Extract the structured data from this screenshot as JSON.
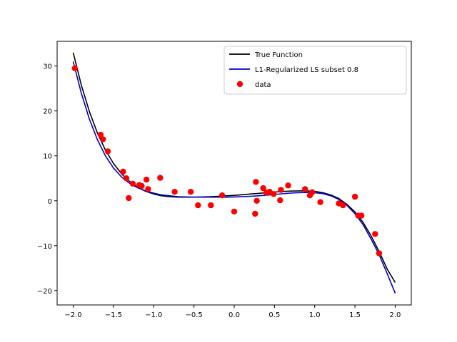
{
  "chart_data": {
    "type": "line",
    "title": "",
    "xlabel": "",
    "ylabel": "",
    "xlim": [
      -2.2,
      2.2
    ],
    "ylim": [
      -23.2,
      35.5
    ],
    "grid": false,
    "legend_position": "top-right",
    "x_ticks": [
      "−2.0",
      "−1.5",
      "−1.0",
      "−0.5",
      "0.0",
      "0.5",
      "1.0",
      "1.5",
      "2.0"
    ],
    "y_ticks": [
      "−20",
      "−10",
      "0",
      "10",
      "20",
      "30"
    ],
    "series": [
      {
        "name": "True Function",
        "kind": "line",
        "color": "#000000",
        "x": [
          -2.0,
          -1.9,
          -1.8,
          -1.7,
          -1.6,
          -1.5,
          -1.4,
          -1.3,
          -1.2,
          -1.1,
          -1.0,
          -0.9,
          -0.8,
          -0.7,
          -0.6,
          -0.5,
          -0.4,
          -0.3,
          -0.2,
          -0.1,
          0.0,
          0.1,
          0.2,
          0.3,
          0.4,
          0.5,
          0.6,
          0.7,
          0.8,
          0.9,
          1.0,
          1.1,
          1.2,
          1.3,
          1.4,
          1.5,
          1.6,
          1.7,
          1.8,
          1.9,
          2.0
        ],
        "y": [
          33.0,
          25.8,
          19.9,
          15.1,
          11.3,
          8.3,
          6.0,
          4.3,
          3.0,
          2.1,
          1.5,
          1.1,
          0.9,
          0.8,
          0.8,
          0.8,
          0.85,
          0.9,
          1.0,
          1.1,
          1.2,
          1.35,
          1.5,
          1.65,
          1.8,
          1.95,
          2.05,
          2.15,
          2.2,
          2.2,
          2.1,
          1.8,
          1.3,
          0.5,
          -0.8,
          -2.5,
          -4.8,
          -7.8,
          -11.3,
          -15.2,
          -18.2
        ]
      },
      {
        "name": "L1-Regularized LS subset 0.8",
        "kind": "line",
        "color": "#0000cc",
        "x": [
          -2.0,
          -1.9,
          -1.8,
          -1.7,
          -1.6,
          -1.5,
          -1.4,
          -1.3,
          -1.2,
          -1.1,
          -1.0,
          -0.9,
          -0.8,
          -0.7,
          -0.6,
          -0.5,
          -0.4,
          -0.3,
          -0.2,
          -0.1,
          0.0,
          0.1,
          0.2,
          0.3,
          0.4,
          0.5,
          0.6,
          0.7,
          0.8,
          0.9,
          1.0,
          1.1,
          1.2,
          1.3,
          1.4,
          1.5,
          1.6,
          1.7,
          1.8,
          1.9,
          2.0
        ],
        "y": [
          31.0,
          24.0,
          18.2,
          13.6,
          10.0,
          7.3,
          5.3,
          3.9,
          2.9,
          2.2,
          1.7,
          1.3,
          1.1,
          0.9,
          0.85,
          0.8,
          0.8,
          0.8,
          0.8,
          0.8,
          0.85,
          0.9,
          1.0,
          1.1,
          1.25,
          1.4,
          1.55,
          1.7,
          1.8,
          1.85,
          1.8,
          1.6,
          1.1,
          0.3,
          -1.0,
          -2.9,
          -5.3,
          -8.5,
          -12.0,
          -16.2,
          -20.6
        ]
      },
      {
        "name": "data",
        "kind": "scatter",
        "color": "#ff0000",
        "x": [
          -1.98,
          -1.66,
          -1.63,
          -1.57,
          -1.38,
          -1.34,
          -1.31,
          -1.26,
          -1.18,
          -1.15,
          -1.09,
          -1.07,
          -0.92,
          -0.74,
          -0.54,
          -0.45,
          -0.29,
          -0.15,
          0.0,
          0.26,
          0.27,
          0.28,
          0.36,
          0.4,
          0.44,
          0.49,
          0.57,
          0.58,
          0.67,
          0.88,
          0.94,
          0.97,
          1.07,
          1.3,
          1.35,
          1.5,
          1.54,
          1.58,
          1.75,
          1.8
        ],
        "y": [
          29.5,
          14.7,
          13.7,
          11.0,
          6.5,
          5.0,
          0.6,
          3.8,
          3.5,
          3.3,
          4.7,
          2.6,
          5.1,
          2.0,
          2.0,
          -1.0,
          -1.0,
          1.2,
          -2.4,
          -2.9,
          4.2,
          0.0,
          2.8,
          1.8,
          2.0,
          1.5,
          0.1,
          2.4,
          3.4,
          2.6,
          1.2,
          1.9,
          -0.3,
          -0.6,
          -1.0,
          0.9,
          -3.3,
          -3.3,
          -7.4,
          -11.7
        ]
      }
    ]
  }
}
